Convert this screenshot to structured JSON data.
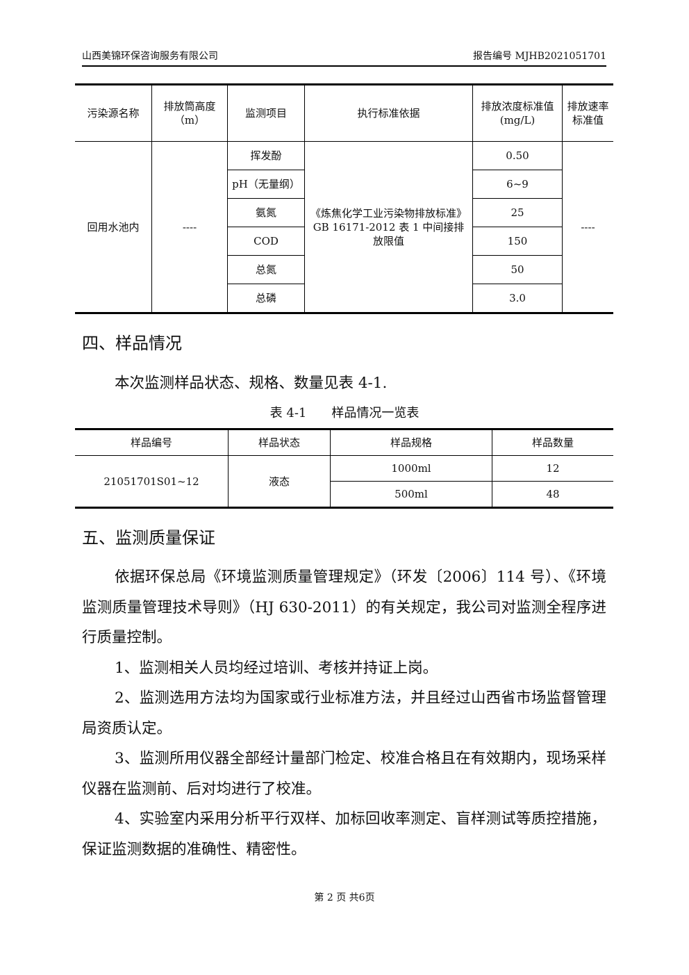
{
  "header": {
    "company": "山西美锦环保咨询服务有限公司",
    "report_no": "报告编号 MJHB2021051701"
  },
  "table1": {
    "headers": [
      "污染源名称",
      "排放筒高度（m）",
      "监测项目",
      "执行标准依据",
      "排放浓度标准值(mg/L)",
      "排放速率标准值"
    ],
    "source": "回用水池内",
    "height": "----",
    "standard": "《炼焦化学工业污染物排放标准》GB 16171-2012 表 1 中间接排放限值",
    "rate": "----",
    "items": [
      {
        "name": "挥发酚",
        "value": "0.50"
      },
      {
        "name": "pH（无量纲）",
        "value": "6~9"
      },
      {
        "name": "氨氮",
        "value": "25"
      },
      {
        "name": "COD",
        "value": "150"
      },
      {
        "name": "总氮",
        "value": "50"
      },
      {
        "name": "总磷",
        "value": "3.0"
      }
    ]
  },
  "section4": {
    "title": "四、样品情况",
    "intro": "本次监测样品状态、规格、数量见表 4-1.",
    "caption": "表 4-1　　样品情况一览表"
  },
  "table2": {
    "headers": [
      "样品编号",
      "样品状态",
      "样品规格",
      "样品数量"
    ],
    "id": "21051701S01~12",
    "state": "液态",
    "rows": [
      {
        "spec": "1000ml",
        "qty": "12"
      },
      {
        "spec": "500ml",
        "qty": "48"
      }
    ]
  },
  "section5": {
    "title": "五、监测质量保证",
    "paragraphs": [
      "依据环保总局《环境监测质量管理规定》（环发〔2006〕114 号）、《环境监测质量管理技术导则》（HJ 630-2011）的有关规定，我公司对监测全程序进行质量控制。",
      "1、监测相关人员均经过培训、考核并持证上岗。",
      "2、监测选用方法均为国家或行业标准方法，并且经过山西省市场监督管理局资质认定。",
      "3、监测所用仪器全部经计量部门检定、校准合格且在有效期内，现场采样仪器在监测前、后对均进行了校准。",
      "4、实验室内采用分析平行双样、加标回收率测定、盲样测试等质控措施，保证监测数据的准确性、精密性。"
    ]
  },
  "footer": "第 2 页 共6页"
}
